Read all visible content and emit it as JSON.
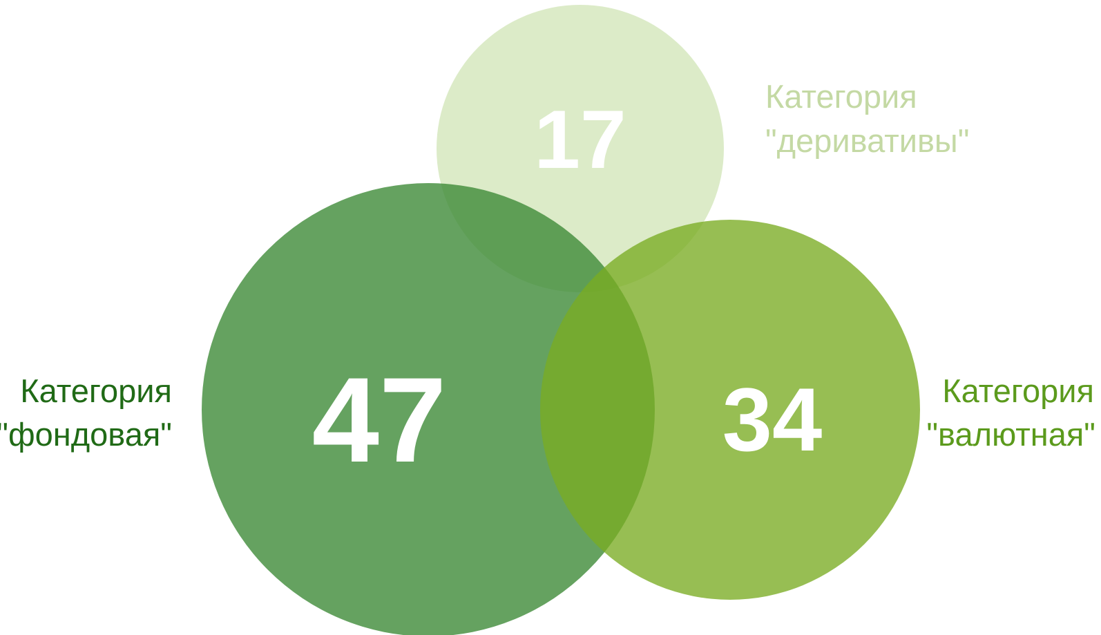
{
  "sets": [
    {
      "id": "stock",
      "label_line1": "Категория",
      "label_line2": "\"фондовая\"",
      "count": "47",
      "fill_color": "#4e9446",
      "label_color": "#206a16"
    },
    {
      "id": "derivatives",
      "label_line1": "Категория",
      "label_line2": "\"деривативы\"",
      "count": "17",
      "fill_color": "#cfe2b2",
      "label_color": "#c4d9a4"
    },
    {
      "id": "currency",
      "label_line1": "Категория",
      "label_line2": "\"валютная\"",
      "count": "34",
      "fill_color": "#7aaa1e",
      "label_color": "#5b9a1c"
    }
  ]
}
